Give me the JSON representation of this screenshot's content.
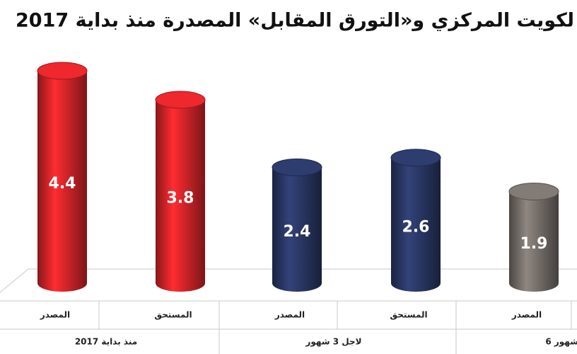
{
  "chart_data": {
    "type": "bar",
    "title": "لكويت المركزي و«التورق المقابل» المصدرة منذ بداية 2017",
    "categories": [
      "المصدر",
      "المستحق",
      "المصدر",
      "المستحق",
      "المصدر"
    ],
    "groups": [
      "منذ بداية 2017",
      "لاجل 3 شهور",
      "6 شهور"
    ],
    "values": [
      4.4,
      3.8,
      2.4,
      2.6,
      1.9
    ],
    "colors": [
      "#e3262b",
      "#e3262b",
      "#2c3a6a",
      "#2c3a6a",
      "#7c7570"
    ]
  }
}
